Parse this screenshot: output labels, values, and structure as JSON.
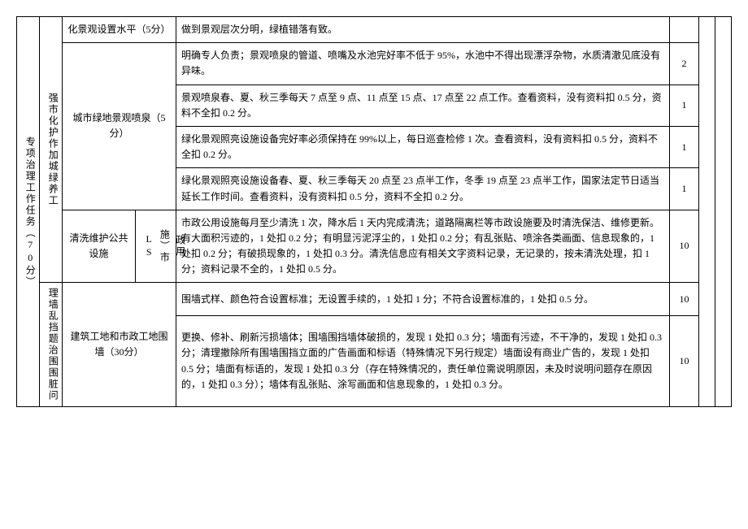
{
  "table": {
    "col1_label": "专项治理工作任务（70分）",
    "groups": [
      {
        "side_label": "强市化护作加城绿养工",
        "blocks": [
          {
            "label": "化景观设置水平（5分）",
            "rows": [
              {
                "desc": "做到景观层次分明，绿植错落有致。",
                "score": ""
              }
            ]
          },
          {
            "label": "城市绿地景观喷泉（5分）",
            "rows": [
              {
                "desc": "明确专人负责；景观喷泉的管道、喷嘴及水池完好率不低于 95%，水池中不得出现漂浮杂物，水质清澈见底没有异味。",
                "score": "2"
              },
              {
                "desc": "景观喷泉春、夏、秋三季每天 7 点至 9 点、11 点至 15 点、17 点至 22 点工作。查看资料，没有资料扣 0.5 分，资料不全扣 0.2 分。",
                "score": "1"
              },
              {
                "desc": "绿化景观照亮设施设备完好率必须保持在 99%以上，每日巡查检修 1 次。查看资料，没有资料扣 0.5 分，资料不全扣 0.2 分。",
                "score": "1"
              },
              {
                "desc": "绿化景观照亮设施设备春、夏、秋三季每天 20 点至 23 点半工作，冬季 19 点至 23 点半工作，国家法定节日适当延长工作时间。查看资料，没有资料扣 0.5 分，资料不全扣 0.2 分。",
                "score": "1"
              }
            ]
          },
          {
            "label": "清洗维护公共设施",
            "sub_label": "政用施L市S",
            "sub_label_lines": [
              "政用",
              "施）市",
              "LS"
            ],
            "rows": [
              {
                "desc": "市政公用设施每月至少清洗 1 次，降水后 1 天内完成清洗；道路隔离栏等市政设施要及时清洗保洁、维修更新。有大面积污迹的，1 处扣 0.2 分；有明显污泥浮尘的，1 处扣 0.2 分；有乱张贴、喷涂各类画面、信息现象的，1 处扣 0.2 分；有破损现象的，1 处扣 0.3 分。清洗信息应有相关文字资料记录，无记录的，按未清洗处理，扣 1 分；资料记录不全的，1 处扣 0.5 分。",
                "score": "10"
              }
            ]
          }
        ]
      },
      {
        "side_label": "理墙乱挡题治围围脏问",
        "blocks": [
          {
            "label": "建筑工地和市政工地围墙（30分）",
            "rows": [
              {
                "desc": "围墙式样、颜色符合设置标准；无设置手续的，1 处扣 1 分；不符合设置标准的，1 处扣 0.5 分。",
                "score": "10"
              },
              {
                "desc": "更换、修补、刷新污损墙体；围墙围挡墙体破损的，发现 1 处扣 0.3 分；墙面有污迹，不干净的，发现 1 处扣 0.3 分；清理撤除所有围墙围挡立面的广告画面和标语（特殊情况下另行规定）墙面设有商业广告的，发现 1 处扣 0.5 分；墙面有标语的，发现 1 处扣 0.3 分（存在特殊情况的，责任单位需说明原因，未及时说明问题存在原因的，1 处扣 0.3 分）；墙体有乱张贴、涂写画面和信息现象的，1 处扣 0.3 分。",
                "score": "10"
              }
            ]
          }
        ]
      }
    ]
  }
}
